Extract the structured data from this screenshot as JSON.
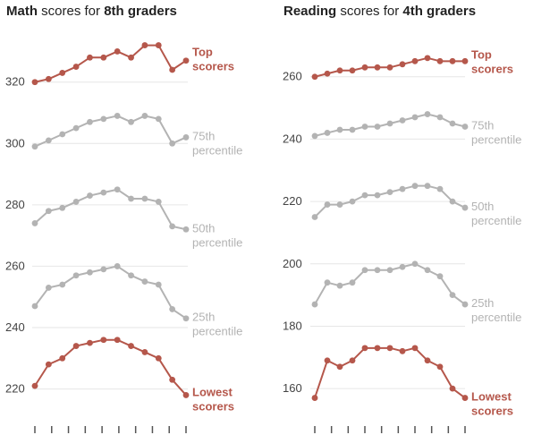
{
  "colors": {
    "accent": "#b5574b",
    "neutral": "#b3b3b3",
    "grid": "#e6e6e6",
    "axis": "#555555"
  },
  "chart_data": [
    {
      "type": "line",
      "title_bold": "Math",
      "title_rest": " scores for ",
      "title_bold2": "8th graders",
      "y_ticks": [
        220,
        240,
        260,
        280,
        300,
        320
      ],
      "ylim": [
        212,
        338
      ],
      "x_count": 10,
      "series": [
        {
          "name": "Top scorers",
          "label_lines": [
            "Top",
            "scorers"
          ],
          "highlight": true,
          "values": [
            320,
            321,
            323,
            325,
            328,
            328,
            330,
            328,
            332,
            332,
            324,
            327
          ]
        },
        {
          "name": "75th percentile",
          "label_lines": [
            "75th",
            "percentile"
          ],
          "highlight": false,
          "values": [
            299,
            301,
            303,
            305,
            307,
            308,
            309,
            307,
            309,
            308,
            300,
            302
          ]
        },
        {
          "name": "50th percentile",
          "label_lines": [
            "50th",
            "percentile"
          ],
          "highlight": false,
          "values": [
            274,
            278,
            279,
            281,
            283,
            284,
            285,
            282,
            282,
            281,
            273,
            272
          ]
        },
        {
          "name": "25th percentile",
          "label_lines": [
            "25th",
            "percentile"
          ],
          "highlight": false,
          "values": [
            247,
            253,
            254,
            257,
            258,
            259,
            260,
            257,
            255,
            254,
            246,
            243
          ]
        },
        {
          "name": "Lowest scorers",
          "label_lines": [
            "Lowest",
            "scorers"
          ],
          "highlight": true,
          "values": [
            221,
            228,
            230,
            234,
            235,
            236,
            236,
            234,
            232,
            230,
            223,
            218
          ]
        }
      ]
    },
    {
      "type": "line",
      "title_bold": "Reading",
      "title_rest": " scores for ",
      "title_bold2": "4th graders",
      "y_ticks": [
        160,
        180,
        200,
        220,
        240,
        260
      ],
      "ylim": [
        152,
        276
      ],
      "x_count": 10,
      "series": [
        {
          "name": "Top scorers",
          "label_lines": [
            "Top",
            "scorers"
          ],
          "highlight": true,
          "values": [
            260,
            261,
            262,
            262,
            263,
            263,
            263,
            264,
            265,
            266,
            265,
            265,
            265
          ]
        },
        {
          "name": "75th percentile",
          "label_lines": [
            "75th",
            "percentile"
          ],
          "highlight": false,
          "values": [
            241,
            242,
            243,
            243,
            244,
            244,
            245,
            246,
            247,
            248,
            247,
            245,
            244
          ]
        },
        {
          "name": "50th percentile",
          "label_lines": [
            "50th",
            "percentile"
          ],
          "highlight": false,
          "values": [
            215,
            219,
            219,
            220,
            222,
            222,
            223,
            224,
            225,
            225,
            224,
            220,
            218
          ]
        },
        {
          "name": "25th percentile",
          "label_lines": [
            "25th",
            "percentile"
          ],
          "highlight": false,
          "values": [
            187,
            194,
            193,
            194,
            198,
            198,
            198,
            199,
            200,
            198,
            196,
            190,
            187
          ]
        },
        {
          "name": "Lowest scorers",
          "label_lines": [
            "Lowest",
            "scorers"
          ],
          "highlight": true,
          "values": [
            157,
            169,
            167,
            169,
            173,
            173,
            173,
            172,
            173,
            169,
            167,
            160,
            157
          ]
        }
      ]
    }
  ]
}
